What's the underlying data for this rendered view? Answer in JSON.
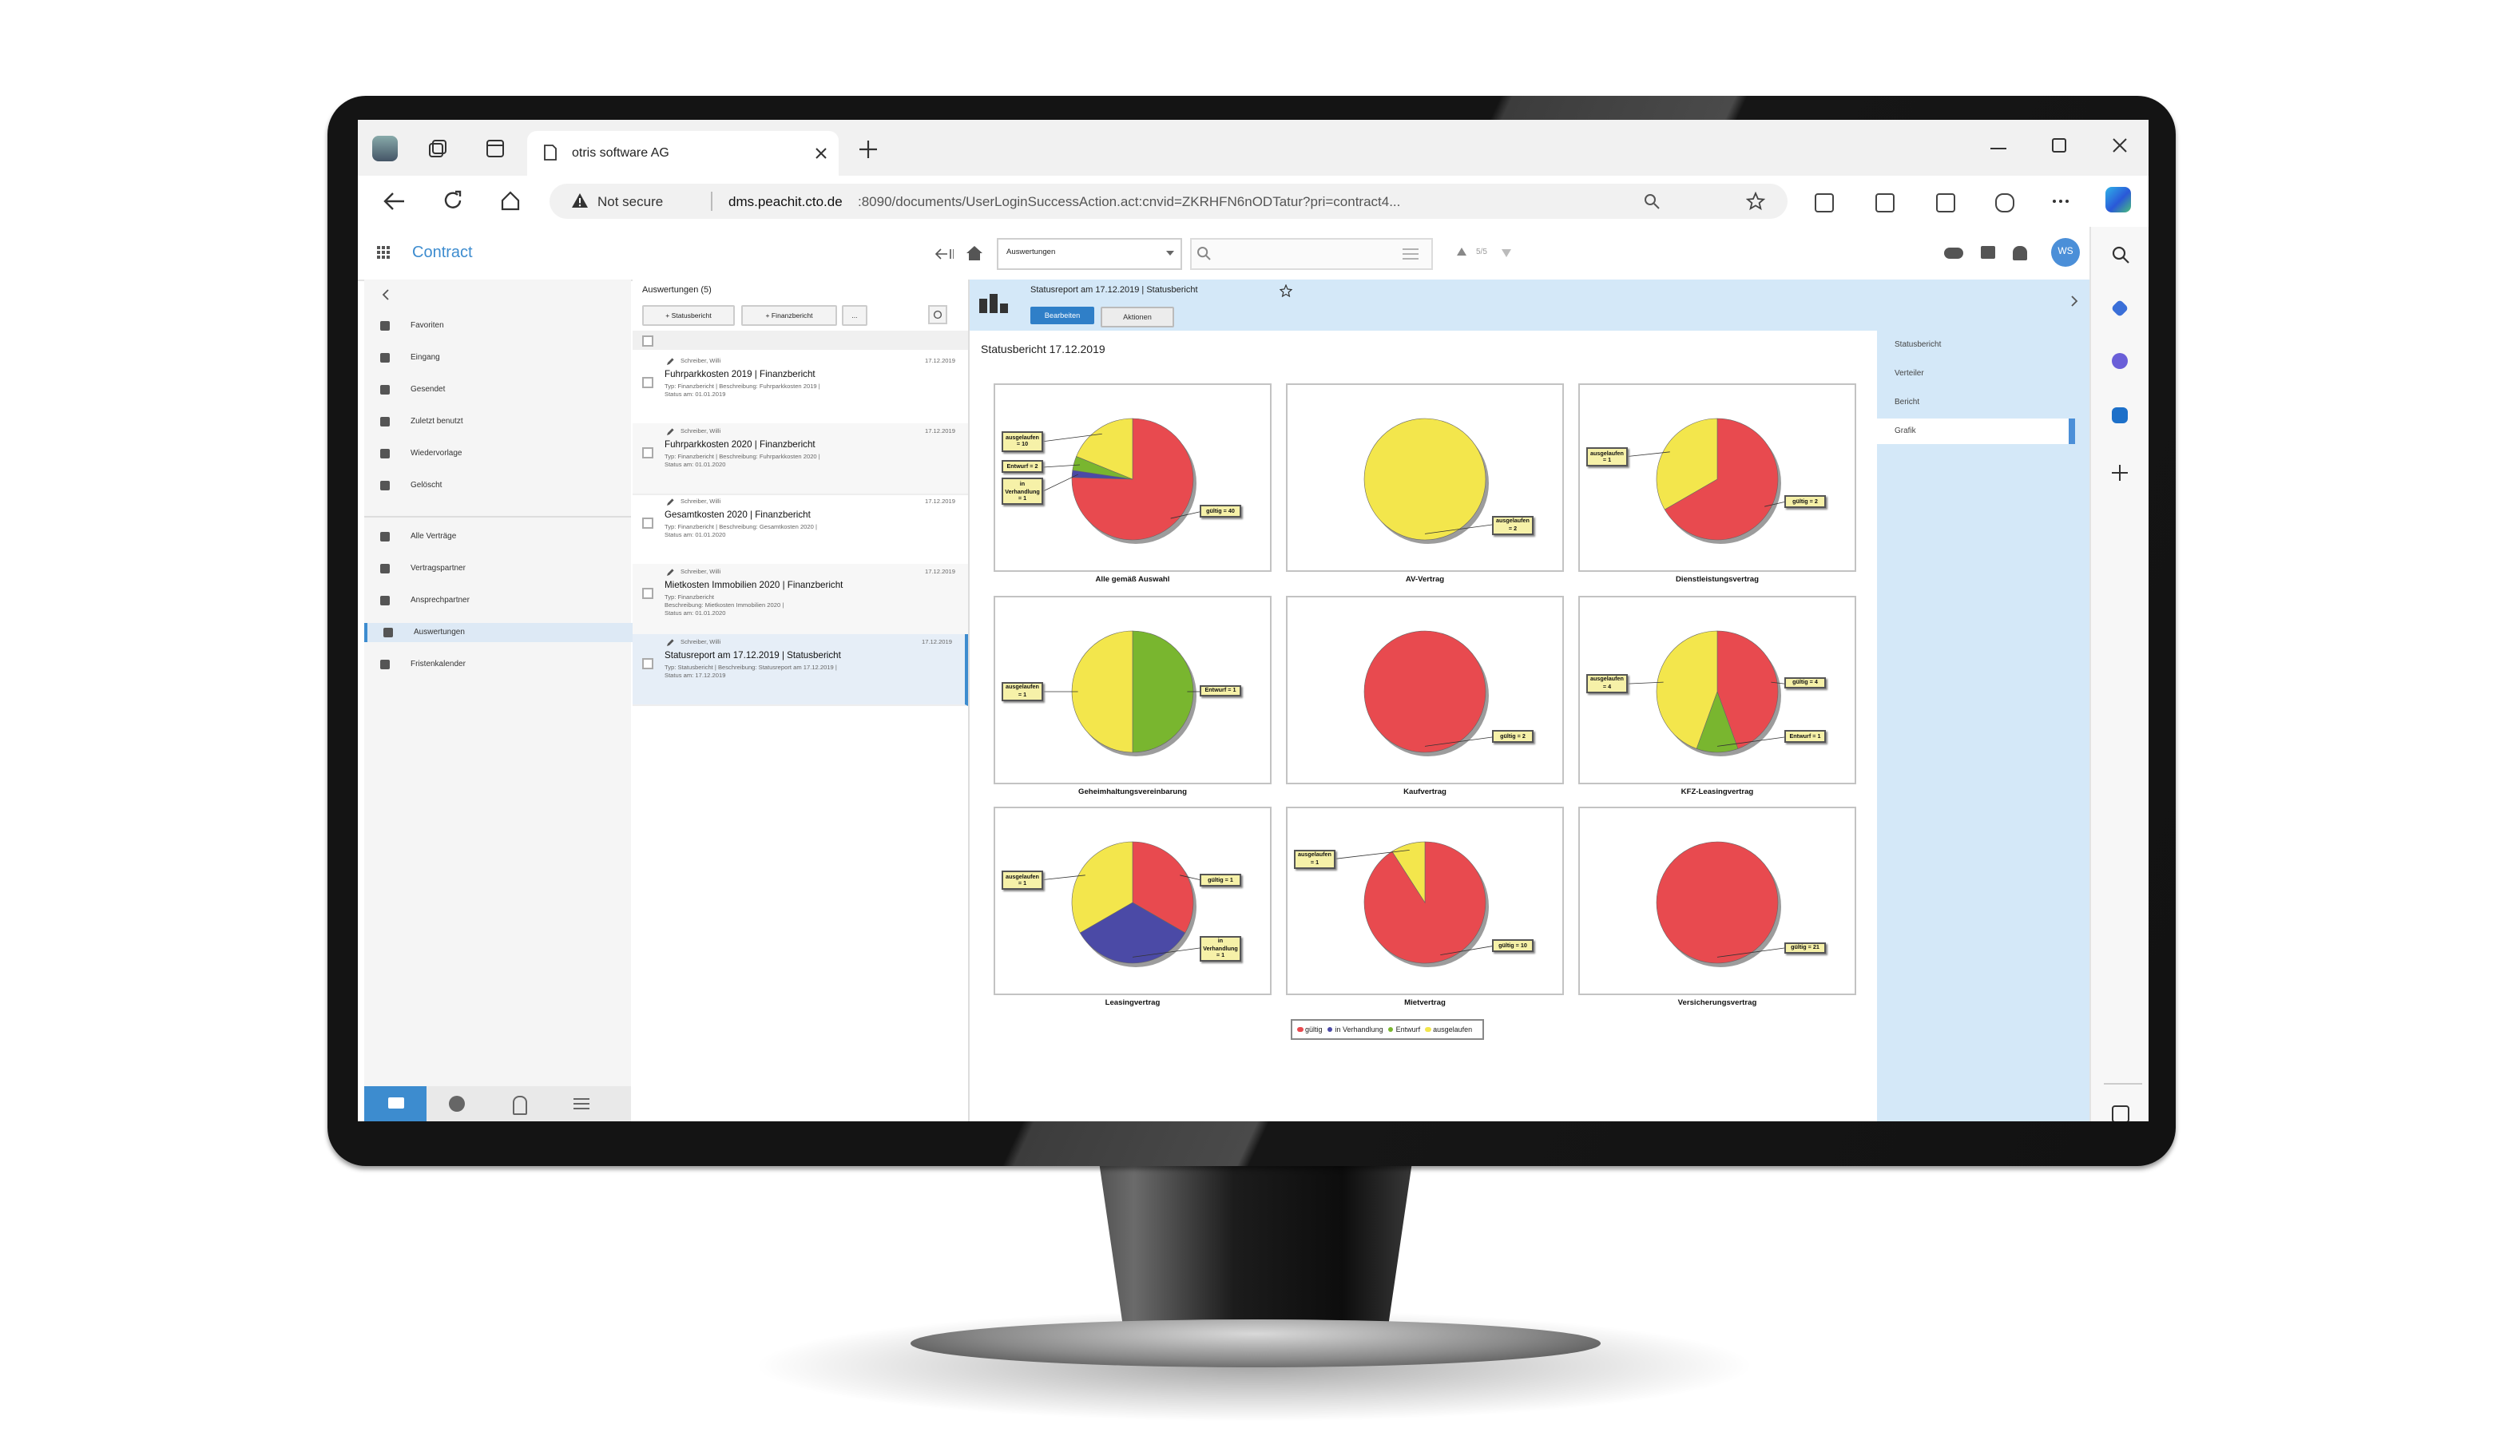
{
  "browser": {
    "tab_title": "otris software AG",
    "security": "Not secure",
    "url_host": "dms.peachit.cto.de",
    "url_path": ":8090/documents/UserLoginSuccessAction.act:cnvid=ZKRHFN6nODTatur?pri=contract4..."
  },
  "app": {
    "name": "Contract",
    "view_select": "Auswertungen",
    "counter": "5/5",
    "avatar": "WS"
  },
  "nav": {
    "items": [
      "Favoriten",
      "Eingang",
      "Gesendet",
      "Zuletzt benutzt",
      "Wiedervorlage",
      "Gelöscht",
      "Alle Verträge",
      "Vertragspartner",
      "Ansprechpartner",
      "Auswertungen",
      "Fristenkalender"
    ]
  },
  "list": {
    "header": "Auswertungen (5)",
    "buttons": [
      "+ Statusbericht",
      "+ Finanzbericht",
      "..."
    ],
    "items": [
      {
        "author": "Schreiber, Willi",
        "date": "17.12.2019",
        "title": "Fuhrparkkosten 2019 | Finanzbericht",
        "details": [
          "Typ: Finanzbericht  |  Beschreibung: Fuhrparkkosten 2019  |",
          "Status am: 01.01.2019"
        ]
      },
      {
        "author": "Schreiber, Willi",
        "date": "17.12.2019",
        "title": "Fuhrparkkosten 2020 | Finanzbericht",
        "details": [
          "Typ: Finanzbericht  |  Beschreibung: Fuhrparkkosten 2020  |",
          "Status am: 01.01.2020"
        ]
      },
      {
        "author": "Schreiber, Willi",
        "date": "17.12.2019",
        "title": "Gesamtkosten 2020 | Finanzbericht",
        "details": [
          "Typ: Finanzbericht  |  Beschreibung: Gesamtkosten 2020  |",
          "Status am: 01.01.2020"
        ]
      },
      {
        "author": "Schreiber, Willi",
        "date": "17.12.2019",
        "title": "Mietkosten Immobilien 2020 | Finanzbericht",
        "details": [
          "Typ: Finanzbericht",
          "Beschreibung: Mietkosten Immobilien 2020  |",
          "Status am: 01.01.2020"
        ]
      },
      {
        "author": "Schreiber, Willi",
        "date": "17.12.2019",
        "title": "Statusreport am 17.12.2019 | Statusbericht",
        "details": [
          "Typ: Statusbericht  |  Beschreibung: Statusreport am 17.12.2019  |",
          "Status am: 17.12.2019"
        ]
      }
    ]
  },
  "report": {
    "header": "Statusreport am 17.12.2019 | Statusbericht",
    "buttons": [
      "Bearbeiten",
      "Aktionen"
    ],
    "title": "Statusbericht 17.12.2019",
    "legend": [
      {
        "name": "gültig",
        "color": "#e84a4f"
      },
      {
        "name": "in Verhandlung",
        "color": "#4b4aa6"
      },
      {
        "name": "Entwurf",
        "color": "#79b62f"
      },
      {
        "name": "ausgelaufen",
        "color": "#f3e64c"
      }
    ],
    "charts": [
      {
        "title": "Alle gemäß Auswahl",
        "values": [
          40,
          1,
          2,
          10
        ],
        "value_labels": [
          "gültig = 40",
          "in Verhandlung = 1",
          "Entwurf = 2",
          "ausgelaufen = 10"
        ]
      },
      {
        "title": "AV-Vertrag",
        "values": [
          null,
          null,
          null,
          2
        ],
        "value_labels": [
          null,
          null,
          null,
          "ausgelaufen = 2"
        ]
      },
      {
        "title": "Dienstleistungsvertrag",
        "values": [
          2,
          null,
          null,
          1
        ],
        "value_labels": [
          "gültig = 2",
          null,
          null,
          "ausgelaufen = 1"
        ]
      },
      {
        "title": "Geheimhaltungsvereinbarung",
        "values": [
          null,
          null,
          1,
          1
        ],
        "value_labels": [
          null,
          null,
          "Entwurf = 1",
          "ausgelaufen = 1"
        ]
      },
      {
        "title": "Kaufvertrag",
        "values": [
          2,
          null,
          null,
          null
        ],
        "value_labels": [
          "gültig = 2",
          null,
          null,
          null
        ]
      },
      {
        "title": "KFZ-Leasingvertrag",
        "values": [
          4,
          null,
          1,
          4
        ],
        "value_labels": [
          "gültig = 4",
          null,
          "Entwurf = 1",
          "ausgelaufen = 4"
        ]
      },
      {
        "title": "Leasingvertrag",
        "values": [
          1,
          1,
          null,
          1
        ],
        "value_labels": [
          "gültig = 1",
          "in Verhandlung = 1",
          null,
          "ausgelaufen = 1"
        ]
      },
      {
        "title": "Mietvertrag",
        "values": [
          10,
          null,
          null,
          1
        ],
        "value_labels": [
          "gültig = 10",
          null,
          null,
          "ausgelaufen = 1"
        ]
      },
      {
        "title": "Versicherungsvertrag",
        "values": [
          21,
          null,
          null,
          null
        ],
        "value_labels": [
          "gültig = 21",
          null,
          null,
          null
        ]
      }
    ]
  },
  "side_panel": {
    "items": [
      "Statusbericht",
      "Verteiler",
      "Bericht",
      "Grafik"
    ]
  }
}
